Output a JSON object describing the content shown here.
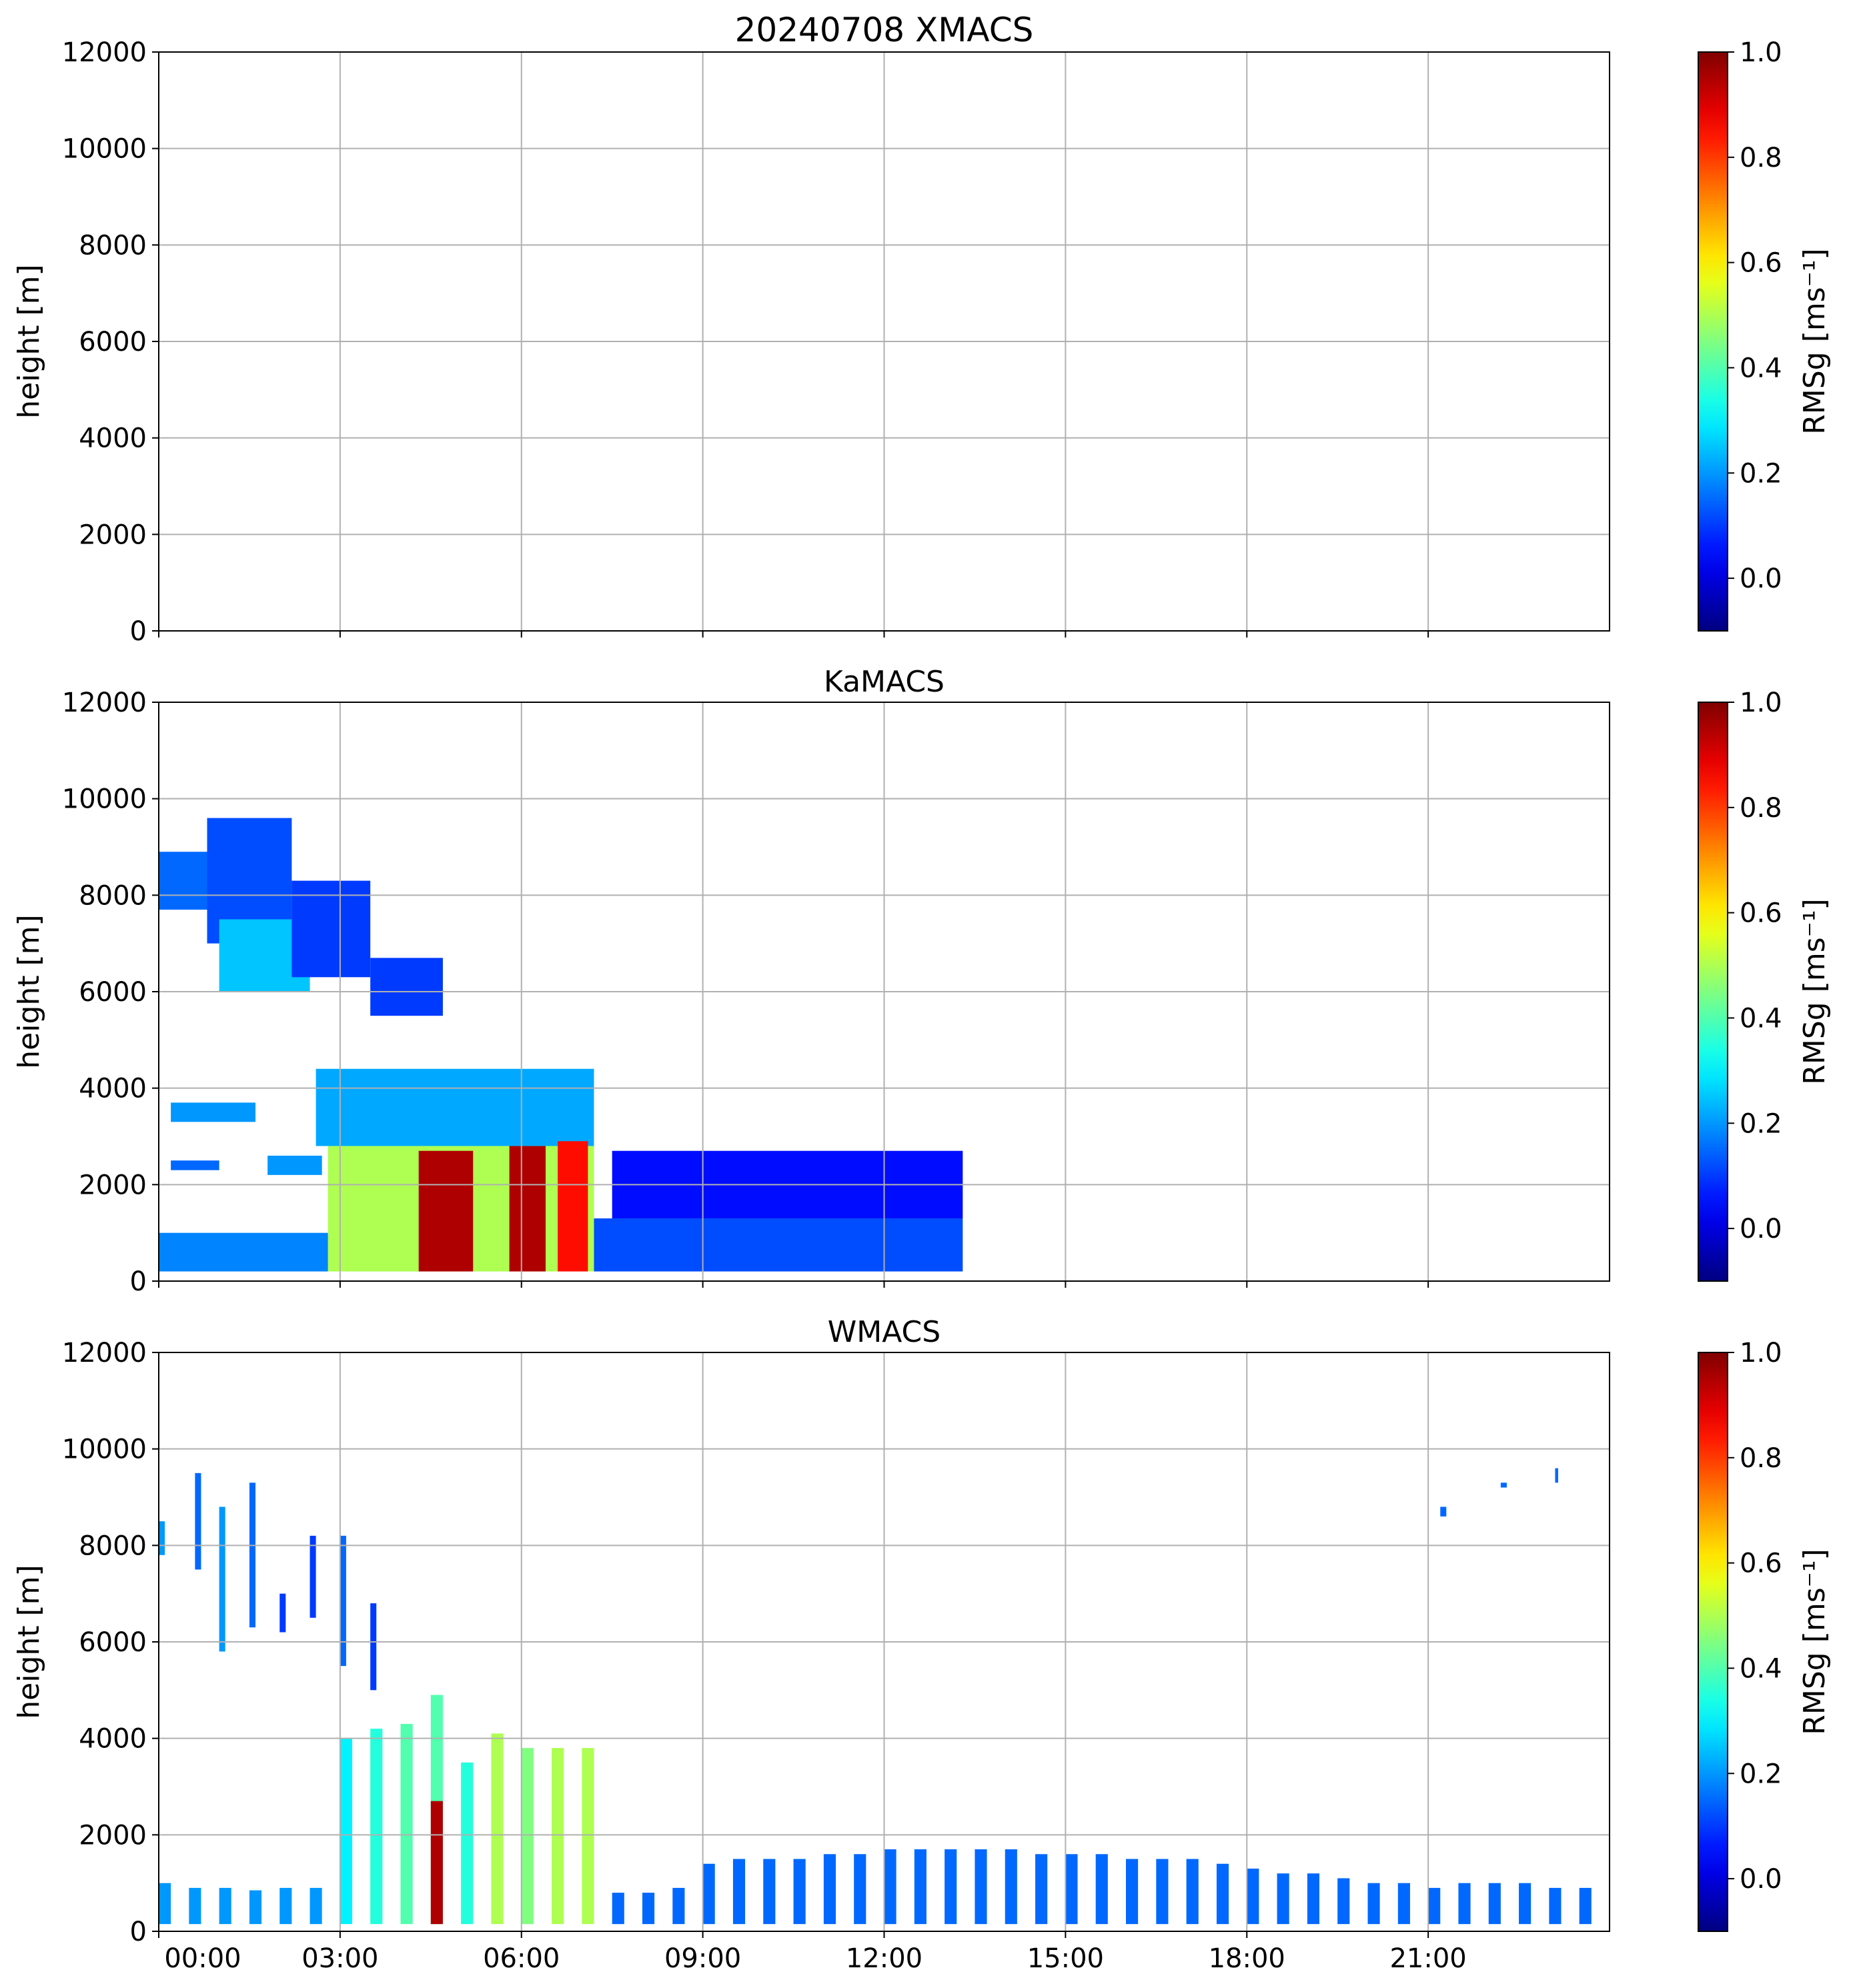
{
  "figure": {
    "colormap": "jet",
    "gridColor": "#b0b0b0",
    "axisColor": "#000000"
  },
  "chart_data": [
    {
      "type": "heatmap",
      "title": "20240708 XMACS",
      "xlabel": "",
      "ylabel": "height [m]",
      "xlim": [
        "2024-07-08 00:00",
        "2024-07-09 00:00"
      ],
      "ylim": [
        0,
        12000
      ],
      "y_ticks": [
        "0",
        "2000",
        "4000",
        "6000",
        "8000",
        "10000",
        "12000"
      ],
      "x_ticks": [],
      "grid": true,
      "colorbar": {
        "label": "RMSg [ms⁻¹]",
        "range": [
          -0.1,
          1.0
        ],
        "ticks": [
          "0.0",
          "0.2",
          "0.4",
          "0.6",
          "0.8",
          "1.0"
        ]
      },
      "regions": []
    },
    {
      "type": "heatmap",
      "title": "KaMACS",
      "xlabel": "",
      "ylabel": "height [m]",
      "xlim": [
        "2024-07-08 00:00",
        "2024-07-09 00:00"
      ],
      "ylim": [
        0,
        12000
      ],
      "y_ticks": [
        "0",
        "2000",
        "4000",
        "6000",
        "8000",
        "10000",
        "12000"
      ],
      "x_ticks": [],
      "grid": true,
      "colorbar": {
        "label": "RMSg [ms⁻¹]",
        "range": [
          -0.1,
          1.0
        ],
        "ticks": [
          "0.0",
          "0.2",
          "0.4",
          "0.6",
          "0.8",
          "1.0"
        ]
      },
      "regions": [
        {
          "t0": 0.0,
          "t1": 0.8,
          "h0": 7700,
          "h1": 8900,
          "v": 0.15
        },
        {
          "t0": 0.8,
          "t1": 2.2,
          "h0": 7000,
          "h1": 9600,
          "v": 0.12
        },
        {
          "t0": 1.0,
          "t1": 2.5,
          "h0": 6000,
          "h1": 7500,
          "v": 0.25
        },
        {
          "t0": 2.2,
          "t1": 3.5,
          "h0": 6300,
          "h1": 8300,
          "v": 0.1
        },
        {
          "t0": 3.5,
          "t1": 4.7,
          "h0": 5500,
          "h1": 6700,
          "v": 0.1
        },
        {
          "t0": 0.2,
          "t1": 1.6,
          "h0": 3300,
          "h1": 3700,
          "v": 0.2
        },
        {
          "t0": 0.2,
          "t1": 1.0,
          "h0": 2300,
          "h1": 2500,
          "v": 0.15
        },
        {
          "t0": 1.8,
          "t1": 2.7,
          "h0": 2200,
          "h1": 2600,
          "v": 0.2
        },
        {
          "t0": 0.0,
          "t1": 2.8,
          "h0": 200,
          "h1": 1000,
          "v": 0.18
        },
        {
          "t0": 2.6,
          "t1": 7.2,
          "h0": 2800,
          "h1": 4400,
          "v": 0.22
        },
        {
          "t0": 2.8,
          "t1": 7.2,
          "h0": 200,
          "h1": 2800,
          "v": 0.5
        },
        {
          "t0": 4.3,
          "t1": 5.2,
          "h0": 200,
          "h1": 2700,
          "v": 0.95
        },
        {
          "t0": 5.8,
          "t1": 6.4,
          "h0": 200,
          "h1": 2800,
          "v": 0.95
        },
        {
          "t0": 6.6,
          "t1": 7.1,
          "h0": 200,
          "h1": 2900,
          "v": 0.85
        },
        {
          "t0": 7.2,
          "t1": 13.3,
          "h0": 200,
          "h1": 1300,
          "v": 0.12
        },
        {
          "t0": 7.5,
          "t1": 13.3,
          "h0": 1300,
          "h1": 2700,
          "v": 0.05
        }
      ]
    },
    {
      "type": "heatmap",
      "title": "WMACS",
      "xlabel": "",
      "ylabel": "height [m]",
      "xlim": [
        "2024-07-08 00:00",
        "2024-07-09 00:00"
      ],
      "ylim": [
        0,
        12000
      ],
      "y_ticks": [
        "0",
        "2000",
        "4000",
        "6000",
        "8000",
        "10000",
        "12000"
      ],
      "x_ticks": [
        "00:00",
        "03:00",
        "06:00",
        "09:00",
        "12:00",
        "15:00",
        "18:00",
        "21:00"
      ],
      "grid": true,
      "colorbar": {
        "label": "RMSg [ms⁻¹]",
        "range": [
          -0.1,
          1.0
        ],
        "ticks": [
          "0.0",
          "0.2",
          "0.4",
          "0.6",
          "0.8",
          "1.0"
        ]
      },
      "regions": [
        {
          "t0": 0.0,
          "t1": 0.2,
          "h0": 150,
          "h1": 1000,
          "v": 0.2
        },
        {
          "t0": 0.5,
          "t1": 0.7,
          "h0": 150,
          "h1": 900,
          "v": 0.2
        },
        {
          "t0": 1.0,
          "t1": 1.2,
          "h0": 150,
          "h1": 900,
          "v": 0.2
        },
        {
          "t0": 1.5,
          "t1": 1.7,
          "h0": 150,
          "h1": 850,
          "v": 0.2
        },
        {
          "t0": 2.0,
          "t1": 2.2,
          "h0": 150,
          "h1": 900,
          "v": 0.2
        },
        {
          "t0": 2.5,
          "t1": 2.7,
          "h0": 150,
          "h1": 900,
          "v": 0.2
        },
        {
          "t0": 0.0,
          "t1": 0.1,
          "h0": 7800,
          "h1": 8500,
          "v": 0.2
        },
        {
          "t0": 0.6,
          "t1": 0.7,
          "h0": 7500,
          "h1": 9500,
          "v": 0.15
        },
        {
          "t0": 1.0,
          "t1": 1.1,
          "h0": 5800,
          "h1": 8800,
          "v": 0.2
        },
        {
          "t0": 1.5,
          "t1": 1.6,
          "h0": 6300,
          "h1": 9300,
          "v": 0.15
        },
        {
          "t0": 2.0,
          "t1": 2.1,
          "h0": 6200,
          "h1": 7000,
          "v": 0.1
        },
        {
          "t0": 2.5,
          "t1": 2.6,
          "h0": 6500,
          "h1": 8200,
          "v": 0.1
        },
        {
          "t0": 3.0,
          "t1": 3.1,
          "h0": 5500,
          "h1": 8200,
          "v": 0.15
        },
        {
          "t0": 3.5,
          "t1": 3.6,
          "h0": 5000,
          "h1": 6800,
          "v": 0.1
        },
        {
          "t0": 3.0,
          "t1": 3.2,
          "h0": 150,
          "h1": 4000,
          "v": 0.3
        },
        {
          "t0": 3.5,
          "t1": 3.7,
          "h0": 150,
          "h1": 4200,
          "v": 0.35
        },
        {
          "t0": 4.0,
          "t1": 4.2,
          "h0": 150,
          "h1": 4300,
          "v": 0.4
        },
        {
          "t0": 4.5,
          "t1": 4.7,
          "h0": 150,
          "h1": 4900,
          "v": 0.4
        },
        {
          "t0": 4.5,
          "t1": 4.7,
          "h0": 150,
          "h1": 2700,
          "v": 0.95
        },
        {
          "t0": 5.0,
          "t1": 5.2,
          "h0": 150,
          "h1": 3500,
          "v": 0.35
        },
        {
          "t0": 5.5,
          "t1": 5.7,
          "h0": 150,
          "h1": 4100,
          "v": 0.5
        },
        {
          "t0": 6.0,
          "t1": 6.2,
          "h0": 150,
          "h1": 3800,
          "v": 0.45
        },
        {
          "t0": 6.5,
          "t1": 6.7,
          "h0": 150,
          "h1": 3800,
          "v": 0.5
        },
        {
          "t0": 7.0,
          "t1": 7.2,
          "h0": 150,
          "h1": 3800,
          "v": 0.5
        },
        {
          "t0": 7.5,
          "t1": 7.7,
          "h0": 150,
          "h1": 800,
          "v": 0.15
        },
        {
          "t0": 8.0,
          "t1": 8.2,
          "h0": 150,
          "h1": 800,
          "v": 0.15
        },
        {
          "t0": 8.5,
          "t1": 8.7,
          "h0": 150,
          "h1": 900,
          "v": 0.15
        },
        {
          "t0": 9.0,
          "t1": 9.2,
          "h0": 150,
          "h1": 1400,
          "v": 0.15
        },
        {
          "t0": 9.5,
          "t1": 9.7,
          "h0": 150,
          "h1": 1500,
          "v": 0.15
        },
        {
          "t0": 10.0,
          "t1": 10.2,
          "h0": 150,
          "h1": 1500,
          "v": 0.15
        },
        {
          "t0": 10.5,
          "t1": 10.7,
          "h0": 150,
          "h1": 1500,
          "v": 0.15
        },
        {
          "t0": 11.0,
          "t1": 11.2,
          "h0": 150,
          "h1": 1600,
          "v": 0.15
        },
        {
          "t0": 11.5,
          "t1": 11.7,
          "h0": 150,
          "h1": 1600,
          "v": 0.15
        },
        {
          "t0": 12.0,
          "t1": 12.2,
          "h0": 150,
          "h1": 1700,
          "v": 0.15
        },
        {
          "t0": 12.5,
          "t1": 12.7,
          "h0": 150,
          "h1": 1700,
          "v": 0.15
        },
        {
          "t0": 13.0,
          "t1": 13.2,
          "h0": 150,
          "h1": 1700,
          "v": 0.15
        },
        {
          "t0": 13.5,
          "t1": 13.7,
          "h0": 150,
          "h1": 1700,
          "v": 0.15
        },
        {
          "t0": 14.0,
          "t1": 14.2,
          "h0": 150,
          "h1": 1700,
          "v": 0.15
        },
        {
          "t0": 14.5,
          "t1": 14.7,
          "h0": 150,
          "h1": 1600,
          "v": 0.15
        },
        {
          "t0": 15.0,
          "t1": 15.2,
          "h0": 150,
          "h1": 1600,
          "v": 0.15
        },
        {
          "t0": 15.5,
          "t1": 15.7,
          "h0": 150,
          "h1": 1600,
          "v": 0.15
        },
        {
          "t0": 16.0,
          "t1": 16.2,
          "h0": 150,
          "h1": 1500,
          "v": 0.15
        },
        {
          "t0": 16.5,
          "t1": 16.7,
          "h0": 150,
          "h1": 1500,
          "v": 0.15
        },
        {
          "t0": 17.0,
          "t1": 17.2,
          "h0": 150,
          "h1": 1500,
          "v": 0.15
        },
        {
          "t0": 17.5,
          "t1": 17.7,
          "h0": 150,
          "h1": 1400,
          "v": 0.15
        },
        {
          "t0": 18.0,
          "t1": 18.2,
          "h0": 150,
          "h1": 1300,
          "v": 0.15
        },
        {
          "t0": 18.5,
          "t1": 18.7,
          "h0": 150,
          "h1": 1200,
          "v": 0.15
        },
        {
          "t0": 19.0,
          "t1": 19.2,
          "h0": 150,
          "h1": 1200,
          "v": 0.15
        },
        {
          "t0": 19.5,
          "t1": 19.7,
          "h0": 150,
          "h1": 1100,
          "v": 0.15
        },
        {
          "t0": 20.0,
          "t1": 20.2,
          "h0": 150,
          "h1": 1000,
          "v": 0.15
        },
        {
          "t0": 20.5,
          "t1": 20.7,
          "h0": 150,
          "h1": 1000,
          "v": 0.15
        },
        {
          "t0": 21.0,
          "t1": 21.2,
          "h0": 150,
          "h1": 900,
          "v": 0.15
        },
        {
          "t0": 21.5,
          "t1": 21.7,
          "h0": 150,
          "h1": 1000,
          "v": 0.15
        },
        {
          "t0": 22.0,
          "t1": 22.2,
          "h0": 150,
          "h1": 1000,
          "v": 0.15
        },
        {
          "t0": 22.5,
          "t1": 22.7,
          "h0": 150,
          "h1": 1000,
          "v": 0.15
        },
        {
          "t0": 23.0,
          "t1": 23.2,
          "h0": 150,
          "h1": 900,
          "v": 0.15
        },
        {
          "t0": 23.5,
          "t1": 23.7,
          "h0": 150,
          "h1": 900,
          "v": 0.15
        },
        {
          "t0": 21.2,
          "t1": 21.3,
          "h0": 8600,
          "h1": 8800,
          "v": 0.15
        },
        {
          "t0": 22.2,
          "t1": 22.3,
          "h0": 9200,
          "h1": 9300,
          "v": 0.15
        },
        {
          "t0": 23.1,
          "t1": 23.15,
          "h0": 9300,
          "h1": 9600,
          "v": 0.15
        }
      ]
    }
  ]
}
